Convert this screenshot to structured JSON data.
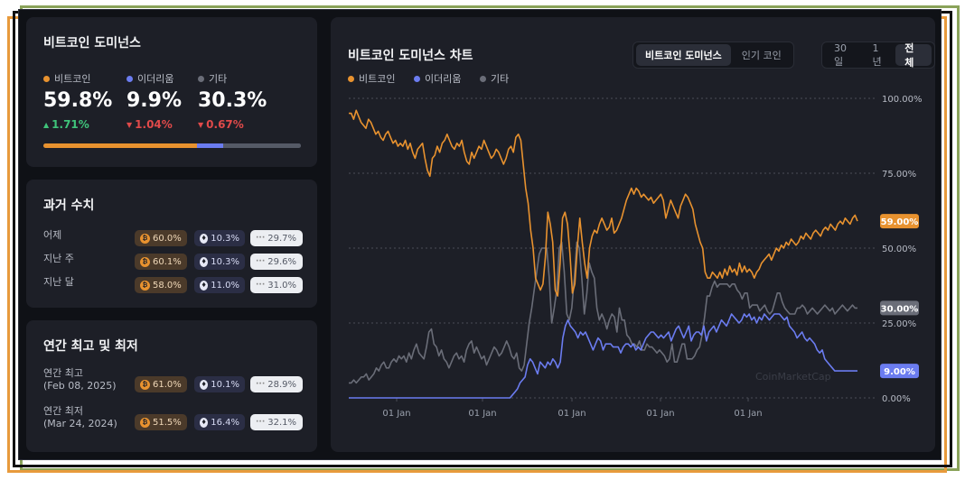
{
  "colors": {
    "btc": "#e8922f",
    "eth": "#6b7cf0",
    "other": "#6a6d78",
    "up": "#3fc37a",
    "down": "#e04a4a"
  },
  "dominance": {
    "title": "비트코인 도미넌스",
    "legend": [
      {
        "label": "비트코인"
      },
      {
        "label": "이더리움"
      },
      {
        "label": "기타"
      }
    ],
    "values": [
      "59.8%",
      "9.9%",
      "30.3%"
    ],
    "changes": [
      "1.71%",
      "1.04%",
      "0.67%"
    ],
    "bar_fractions": [
      0.598,
      0.099,
      0.303
    ]
  },
  "history": {
    "title": "과거 수치",
    "rows": [
      {
        "label": "어제",
        "btc": "60.0%",
        "eth": "10.3%",
        "other": "29.7%"
      },
      {
        "label": "지난 주",
        "btc": "60.1%",
        "eth": "10.3%",
        "other": "29.6%"
      },
      {
        "label": "지난 달",
        "btc": "58.0%",
        "eth": "11.0%",
        "other": "31.0%"
      }
    ]
  },
  "yearly": {
    "title": "연간 최고 및 최저",
    "rows": [
      {
        "label": "연간 최고",
        "date": "(Feb 08, 2025)",
        "btc": "61.0%",
        "eth": "10.1%",
        "other": "28.9%"
      },
      {
        "label": "연간 최저",
        "date": "(Mar 24, 2024)",
        "btc": "51.5%",
        "eth": "16.4%",
        "other": "32.1%"
      }
    ]
  },
  "chart_card": {
    "title": "비트코인 도미넌스 차트",
    "tabs": [
      "비트코인 도미넌스",
      "인기 코인"
    ],
    "ranges": [
      "30일",
      "1년",
      "전체"
    ],
    "watermark": "CoinMarketCap"
  },
  "chart_data": {
    "type": "line",
    "title": "",
    "ylabel": "",
    "xlabel": "",
    "ylim": [
      0,
      100
    ],
    "y_ticks": [
      "100.00%",
      "75.00%",
      "50.00%",
      "25.00%",
      "0.00%"
    ],
    "x_ticks": [
      "01 Jan",
      "01 Jan",
      "01 Jan",
      "01 Jan",
      "01 Jan"
    ],
    "end_labels": [
      "59.00%",
      "30.00%",
      "9.00%"
    ],
    "series": [
      {
        "name": "비트코인",
        "values": [
          95,
          95,
          93,
          96,
          94,
          92,
          91,
          90,
          93,
          92,
          90,
          88,
          89,
          87,
          86,
          88,
          89,
          87,
          85,
          86,
          84,
          85,
          84,
          86,
          83,
          85,
          82,
          80,
          83,
          84,
          85,
          80,
          76,
          74,
          80,
          81,
          84,
          82,
          85,
          86,
          88,
          86,
          84,
          83,
          85,
          84,
          86,
          82,
          79,
          78,
          82,
          80,
          82,
          84,
          83,
          86,
          84,
          82,
          80,
          81,
          83,
          82,
          80,
          78,
          80,
          83,
          84,
          82,
          87,
          88,
          86,
          78,
          70,
          65,
          56,
          50,
          40,
          38,
          36,
          38,
          47,
          62,
          58,
          52,
          36,
          34,
          45,
          60,
          62,
          58,
          48,
          35,
          38,
          50,
          60,
          52,
          45,
          40,
          50,
          54,
          56,
          55,
          58,
          60,
          58,
          56,
          57,
          60,
          55,
          56,
          58,
          60,
          63,
          66,
          68,
          70,
          68,
          70,
          69,
          67,
          68,
          67,
          66,
          67,
          65,
          66,
          67,
          68,
          66,
          60,
          63,
          66,
          64,
          62,
          60,
          64,
          66,
          68,
          67,
          65,
          63,
          58,
          55,
          52,
          50,
          42,
          40,
          40,
          42,
          41,
          40,
          42,
          40,
          43,
          41,
          44,
          42,
          43,
          41,
          45,
          42,
          44,
          42,
          43,
          42,
          40,
          42,
          43,
          45,
          46,
          47,
          48,
          46,
          48,
          50,
          49,
          51,
          50,
          52,
          51,
          53,
          52,
          51,
          52,
          54,
          53,
          55,
          54,
          53,
          55,
          56,
          55,
          54,
          56,
          57,
          56,
          58,
          57,
          56,
          58,
          59,
          58,
          60,
          59,
          58,
          60,
          61,
          59
        ]
      },
      {
        "name": "이더리움",
        "values": [
          0,
          0,
          0,
          0,
          0,
          0,
          0,
          0,
          0,
          0,
          0,
          0,
          0,
          0,
          0,
          0,
          0,
          0,
          0,
          0,
          0,
          0,
          0,
          0,
          0,
          0,
          0,
          0,
          0,
          0,
          0,
          0,
          0,
          0,
          0,
          0,
          0,
          0,
          0,
          0,
          0,
          0,
          0,
          0,
          0,
          0,
          0,
          0,
          0,
          0,
          0,
          0,
          0,
          0,
          0,
          0,
          0,
          0,
          0,
          0,
          0,
          0,
          0,
          0,
          0,
          1,
          2,
          3,
          5,
          6,
          7,
          11,
          13,
          12,
          10,
          8,
          12,
          11,
          10,
          12,
          11,
          13,
          12,
          10,
          12,
          20,
          24,
          26,
          24,
          23,
          22,
          20,
          22,
          21,
          22,
          20,
          18,
          16,
          18,
          20,
          19,
          16,
          18,
          18,
          18,
          17,
          17,
          17,
          15,
          17,
          18,
          18,
          17,
          18,
          16,
          17,
          16,
          18,
          20,
          21,
          22,
          22,
          21,
          20,
          21,
          20,
          21,
          22,
          19,
          21,
          23,
          24,
          22,
          20,
          22,
          24,
          19,
          21,
          22,
          22,
          21,
          24,
          19,
          22,
          23,
          24,
          22,
          24,
          26,
          25,
          24,
          26,
          28,
          27,
          26,
          25,
          26,
          28,
          27,
          28,
          26,
          27,
          25,
          27,
          26,
          28,
          27,
          26,
          27,
          28,
          28,
          28,
          27,
          26,
          27,
          24,
          23,
          22,
          20,
          21,
          22,
          20,
          19,
          20,
          19,
          18,
          16,
          15,
          16,
          13,
          12,
          11,
          10,
          9,
          9,
          9,
          9,
          9,
          9,
          9,
          9,
          9,
          9
        ]
      },
      {
        "name": "기타",
        "values": [
          5,
          5,
          6,
          5,
          6,
          7,
          7,
          8,
          6,
          7,
          8,
          10,
          9,
          11,
          12,
          10,
          10,
          12,
          13,
          12,
          14,
          13,
          14,
          12,
          15,
          13,
          16,
          18,
          15,
          14,
          13,
          17,
          22,
          23,
          18,
          17,
          14,
          16,
          13,
          12,
          10,
          12,
          14,
          15,
          13,
          14,
          12,
          16,
          18,
          19,
          15,
          17,
          15,
          13,
          14,
          11,
          13,
          15,
          17,
          16,
          14,
          15,
          17,
          19,
          17,
          14,
          13,
          15,
          10,
          9,
          11,
          18,
          25,
          30,
          36,
          42,
          48,
          50,
          50,
          50,
          40,
          25,
          30,
          36,
          50,
          52,
          42,
          28,
          26,
          30,
          40,
          52,
          50,
          40,
          28,
          35,
          45,
          42,
          40,
          30,
          26,
          28,
          26,
          23,
          26,
          28,
          27,
          22,
          30,
          26,
          26,
          21,
          20,
          18,
          18,
          17,
          19,
          16,
          16,
          18,
          17,
          17,
          16,
          15,
          16,
          15,
          14,
          12,
          13,
          18,
          12,
          12,
          15,
          18,
          18,
          13,
          13,
          13,
          14,
          16,
          17,
          21,
          27,
          34,
          34,
          37,
          39,
          37,
          38,
          38,
          38,
          38,
          37,
          38,
          38,
          36,
          35,
          33,
          35,
          35,
          30,
          31,
          31,
          31,
          29,
          30,
          31,
          29,
          28,
          29,
          32,
          35,
          35,
          32,
          30,
          29,
          28,
          28,
          28,
          30,
          30,
          31,
          30,
          28,
          29,
          30,
          29,
          28,
          29,
          30,
          31,
          30,
          29,
          30,
          28,
          29,
          30,
          31,
          30,
          29,
          30,
          31,
          30,
          30
        ]
      }
    ]
  }
}
